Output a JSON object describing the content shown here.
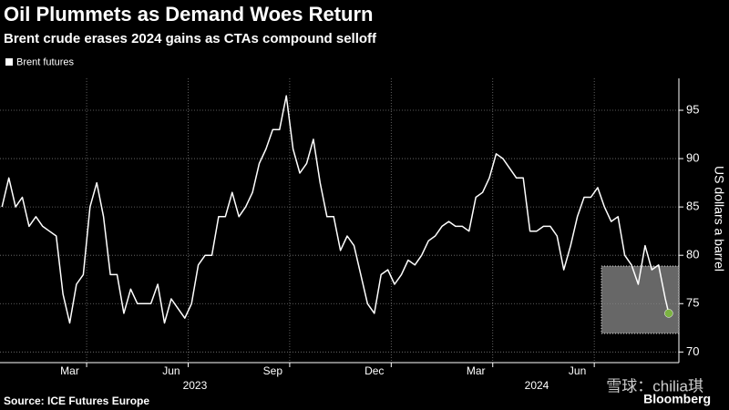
{
  "chart_data": {
    "type": "line",
    "title": "Oil Plummets as Demand Woes Return",
    "subtitle": "Brent crude erases 2024 gains as CTAs compound selloff",
    "y_label": "US dollars a barrel",
    "source": "Source: ICE Futures Europe",
    "brand": "Bloomberg",
    "watermark": "雪球：chilia琪",
    "legend": "top-left",
    "grid": true,
    "xlim": [
      0.44,
      20.5
    ],
    "ylim": [
      68.9,
      98.3
    ],
    "yticks": [
      70,
      75,
      80,
      85,
      90,
      95
    ],
    "xticks": [
      {
        "value": 2.5,
        "label": "Mar"
      },
      {
        "value": 5.5,
        "label": "Jun"
      },
      {
        "value": 8.5,
        "label": "Sep"
      },
      {
        "value": 11.5,
        "label": "Dec"
      },
      {
        "value": 14.5,
        "label": "Mar"
      },
      {
        "value": 17.5,
        "label": "Jun"
      }
    ],
    "xgrid": [
      3,
      6,
      9,
      12,
      15,
      18
    ],
    "xgroups": [
      {
        "value": 6.2,
        "label": "2023"
      },
      {
        "value": 16.3,
        "label": "2024"
      }
    ],
    "x": [
      0.5,
      0.7,
      0.9,
      1.1,
      1.3,
      1.5,
      1.7,
      1.9,
      2.1,
      2.3,
      2.5,
      2.7,
      2.9,
      3.1,
      3.3,
      3.5,
      3.7,
      3.9,
      4.1,
      4.3,
      4.5,
      4.7,
      4.9,
      5.1,
      5.3,
      5.5,
      5.7,
      5.9,
      6.1,
      6.3,
      6.5,
      6.7,
      6.9,
      7.1,
      7.3,
      7.5,
      7.7,
      7.9,
      8.1,
      8.3,
      8.5,
      8.7,
      8.9,
      9.1,
      9.3,
      9.5,
      9.7,
      9.9,
      10.1,
      10.3,
      10.5,
      10.7,
      10.9,
      11.1,
      11.3,
      11.5,
      11.7,
      11.9,
      12.1,
      12.3,
      12.5,
      12.7,
      12.9,
      13.1,
      13.3,
      13.5,
      13.7,
      13.9,
      14.1,
      14.3,
      14.5,
      14.7,
      14.9,
      15.1,
      15.3,
      15.5,
      15.7,
      15.9,
      16.1,
      16.3,
      16.5,
      16.7,
      16.9,
      17.1,
      17.3,
      17.5,
      17.7,
      17.9,
      18.1,
      18.3,
      18.5,
      18.7,
      18.9,
      19.1,
      19.3,
      19.5,
      19.7,
      19.9,
      20.1,
      20.2
    ],
    "series": [
      {
        "name": "Brent futures",
        "color": "#ffffff",
        "marker_color": "#7cb342",
        "values": [
          85,
          88,
          85,
          86,
          83,
          84,
          83,
          82.5,
          82,
          76,
          73,
          77,
          78,
          85,
          87.5,
          84,
          78,
          78,
          74,
          76.5,
          75,
          75,
          75,
          77,
          73,
          75.5,
          74.5,
          73.5,
          75,
          79,
          80,
          80,
          84,
          84,
          86.5,
          84,
          85,
          86.5,
          89.5,
          91,
          93,
          93,
          96.5,
          91,
          88.5,
          89.5,
          92,
          87.5,
          84,
          84,
          80.5,
          82,
          81,
          78,
          75,
          74,
          78,
          78.5,
          77,
          78,
          79.5,
          79,
          80,
          81.5,
          82,
          83,
          83.5,
          83,
          83,
          82.5,
          86,
          86.5,
          88,
          90.5,
          90,
          89,
          88,
          88,
          82.5,
          82.5,
          83,
          83,
          82,
          78.5,
          81,
          84,
          86,
          86,
          87,
          85,
          83.5,
          84,
          80,
          79,
          77,
          81,
          78.5,
          79,
          75.5,
          74
        ]
      }
    ]
  }
}
